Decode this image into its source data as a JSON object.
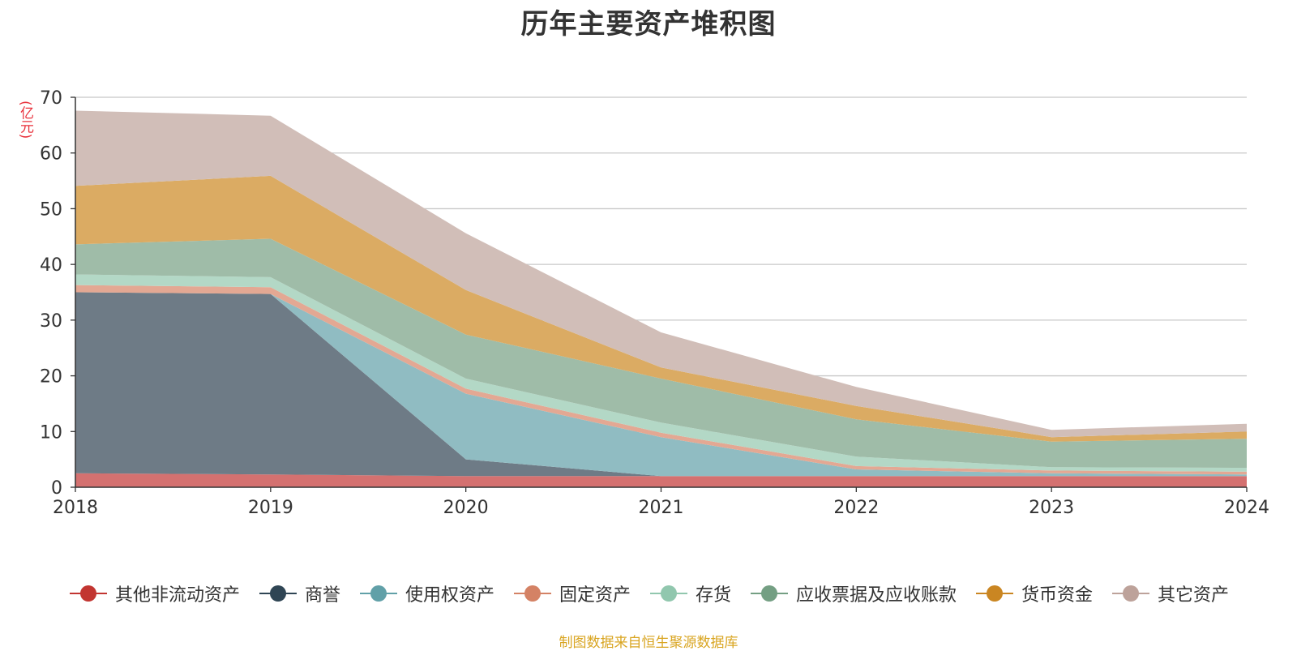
{
  "chart_data": {
    "type": "area",
    "stacked": true,
    "title": "历年主要资产堆积图",
    "ylabel": "(亿元)",
    "xlabel": "",
    "x": [
      "2018",
      "2019",
      "2020",
      "2021",
      "2022",
      "2023",
      "2024"
    ],
    "ylim": [
      0,
      70
    ],
    "yticks": [
      0,
      10,
      20,
      30,
      40,
      50,
      60,
      70
    ],
    "grid": true,
    "legend_position": "bottom",
    "series": [
      {
        "name": "其他非流动资产",
        "color": "#c23531",
        "fill": "#d47170",
        "values": [
          2.5,
          2.3,
          2.0,
          2.0,
          2.0,
          2.0,
          2.0
        ]
      },
      {
        "name": "商誉",
        "color": "#2f4554",
        "fill": "#6e7b86",
        "values": [
          32.5,
          32.4,
          3.0,
          0.0,
          0.0,
          0.0,
          0.0
        ]
      },
      {
        "name": "使用权资产",
        "color": "#61a0a8",
        "fill": "#90bcc2",
        "values": [
          0.0,
          0.0,
          11.8,
          7.0,
          1.2,
          0.5,
          0.3
        ]
      },
      {
        "name": "固定资产",
        "color": "#d48265",
        "fill": "#e3a893",
        "values": [
          1.3,
          1.2,
          0.9,
          0.8,
          0.6,
          0.5,
          0.5
        ]
      },
      {
        "name": "存货",
        "color": "#91c7ae",
        "fill": "#b3d8c6",
        "values": [
          1.9,
          1.8,
          1.8,
          1.8,
          1.7,
          0.6,
          0.7
        ]
      },
      {
        "name": "应收票据及应收账款",
        "color": "#749f83",
        "fill": "#9fbca8",
        "values": [
          5.4,
          6.9,
          7.9,
          7.9,
          6.7,
          4.6,
          5.2
        ]
      },
      {
        "name": "货币资金",
        "color": "#ca8622",
        "fill": "#dbab63",
        "values": [
          10.5,
          11.3,
          8.0,
          2.0,
          2.4,
          0.8,
          1.3
        ]
      },
      {
        "name": "其它资产",
        "color": "#bda29a",
        "fill": "#d1beb8",
        "values": [
          13.5,
          10.8,
          10.2,
          6.3,
          3.4,
          1.3,
          1.4
        ]
      }
    ]
  },
  "source_note": "制图数据来自恒生聚源数据库"
}
